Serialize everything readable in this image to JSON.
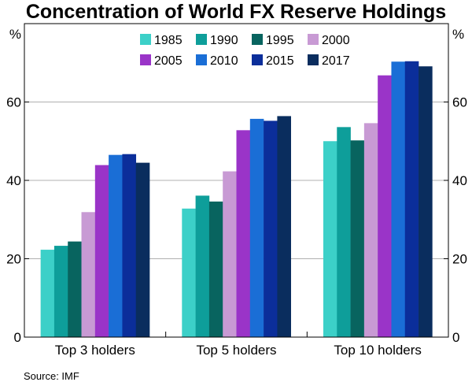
{
  "chart_data": {
    "type": "bar",
    "title": "Concentration of World FX Reserve Holdings",
    "ylabel_left": "%",
    "ylabel_right": "%",
    "ylim": [
      0,
      80
    ],
    "yticks": [
      0,
      20,
      40,
      60
    ],
    "grid": true,
    "legend_position": "top-center",
    "categories": [
      "Top 3 holders",
      "Top 5 holders",
      "Top 10 holders"
    ],
    "series": [
      {
        "name": "1985",
        "color": "#3cd0c8",
        "values": [
          22.3,
          32.8,
          50.0
        ]
      },
      {
        "name": "1990",
        "color": "#0e9e9a",
        "values": [
          23.3,
          36.1,
          53.6
        ]
      },
      {
        "name": "1995",
        "color": "#08645f",
        "values": [
          24.4,
          34.6,
          50.2
        ]
      },
      {
        "name": "2000",
        "color": "#c89ad4",
        "values": [
          31.9,
          42.3,
          54.6
        ]
      },
      {
        "name": "2005",
        "color": "#9a34c8",
        "values": [
          43.9,
          52.8,
          66.8
        ]
      },
      {
        "name": "2010",
        "color": "#1a6ed6",
        "values": [
          46.5,
          55.7,
          70.3
        ]
      },
      {
        "name": "2015",
        "color": "#0b2e9a",
        "values": [
          46.7,
          55.2,
          70.4
        ]
      },
      {
        "name": "2017",
        "color": "#0a2d5e",
        "values": [
          44.5,
          56.4,
          69.1
        ]
      }
    ]
  },
  "source": "Source:   IMF"
}
